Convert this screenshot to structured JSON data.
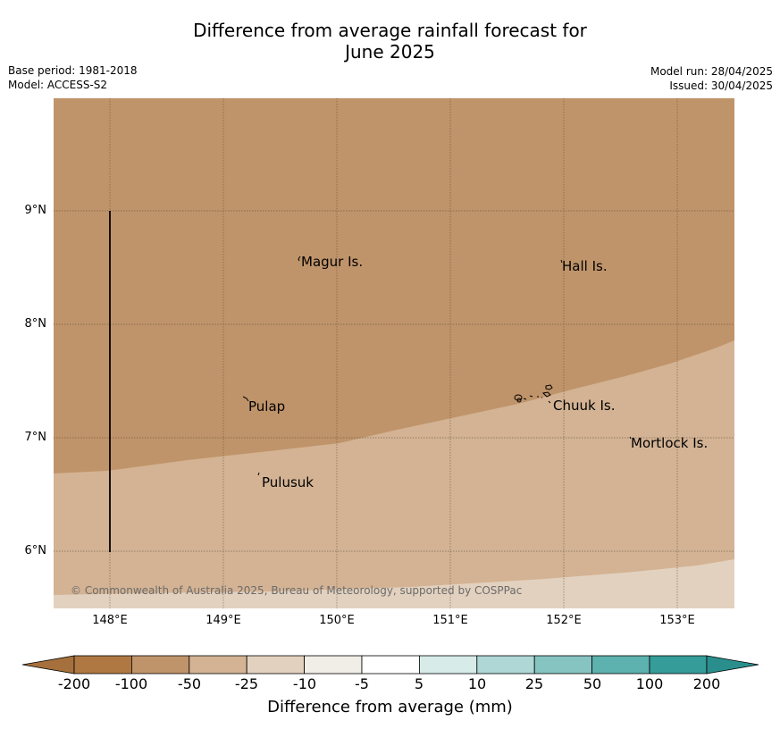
{
  "title": {
    "line1": "Difference from average rainfall forecast for",
    "line2": "June 2025"
  },
  "meta": {
    "base_period": "Base period: 1981-2018",
    "model": "Model: ACCESS-S2",
    "model_run": "Model run: 28/04/2025",
    "issued": "Issued: 30/04/2025"
  },
  "map": {
    "lat_labels": [
      "9°N",
      "8°N",
      "7°N",
      "6°N"
    ],
    "lon_labels": [
      "148°E",
      "149°E",
      "150°E",
      "151°E",
      "152°E",
      "153°E"
    ],
    "places": [
      "Magur Is.",
      "Hall Is.",
      "Pulap",
      "Chuuk Is.",
      "Mortlock Is.",
      "Pulusuk"
    ],
    "copyright": "© Commonwealth of Australia 2025, Bureau of Meteorology, supported by COSPPac",
    "colors": {
      "band_neg50": "#c0946a",
      "band_neg25": "#d3b394",
      "band_neg10": "#e3d1bf"
    }
  },
  "colorbar": {
    "label": "Difference from average (mm)",
    "ticks": [
      "-200",
      "-100",
      "-50",
      "-25",
      "-10",
      "-5",
      "5",
      "10",
      "25",
      "50",
      "100",
      "200"
    ],
    "colors": [
      "#a6703d",
      "#af7842",
      "#c0946a",
      "#d3b394",
      "#e3d1bf",
      "#f1ede7",
      "#ffffff",
      "#d7ebe9",
      "#aed7d5",
      "#86c4c1",
      "#5db1ae",
      "#359c99",
      "#2a8f8c"
    ]
  }
}
